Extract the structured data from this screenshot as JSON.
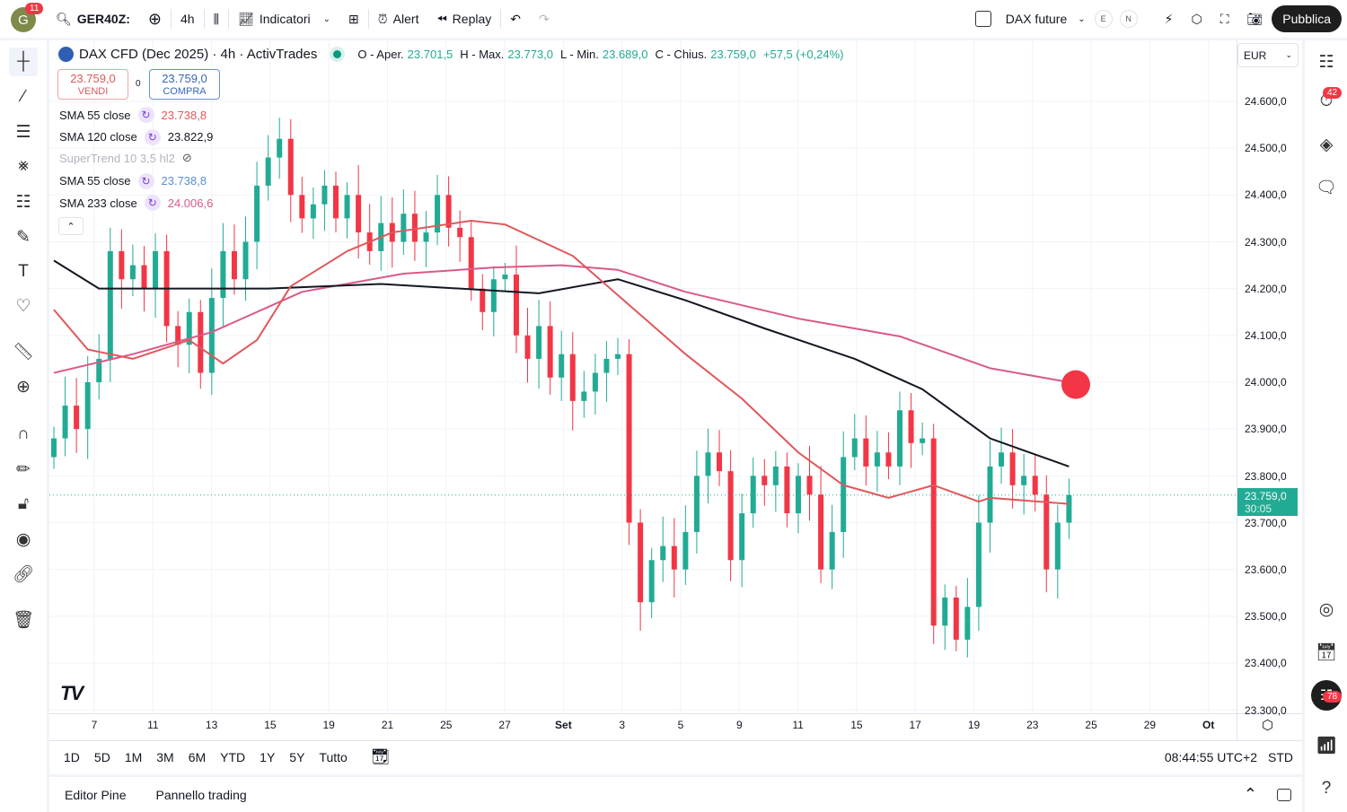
{
  "header": {
    "notif_count": "11",
    "avatar_letter": "G",
    "symbol": "GER40Z:",
    "interval": "4h",
    "indicators": "Indicatori",
    "alert": "Alert",
    "replay": "Replay",
    "layout_name": "DAX future",
    "e": "E",
    "n": "N",
    "publish": "Pubblica"
  },
  "legend": {
    "title": "DAX CFD (Dec 2025) · 4h · ActivTrades",
    "o_label": "O - Aper.",
    "o": "23.701,5",
    "h_label": "H - Max.",
    "h": "23.773,0",
    "l_label": "L - Min.",
    "l": "23.689,0",
    "c_label": "C - Chius.",
    "c": "23.759,0",
    "change": "+57,5 (+0,24%)"
  },
  "trade": {
    "sell_price": "23.759,0",
    "sell": "VENDI",
    "spread": "0",
    "buy_price": "23.759,0",
    "buy": "COMPRA"
  },
  "indicators": [
    {
      "name": "SMA 55 close",
      "value": "23.738,8",
      "color": "#e0585b"
    },
    {
      "name": "SMA 120 close",
      "value": "23.822,9",
      "color": "#131722"
    },
    {
      "name": "SuperTrend 10 3,5 hl2",
      "value": "",
      "color": "#b2b5be",
      "hidden": true
    },
    {
      "name": "SMA 55 close",
      "value": "23.738,8",
      "color": "#5b8fd0"
    },
    {
      "name": "SMA 233 close",
      "value": "24.006,6",
      "color": "#d9598a"
    }
  ],
  "currency": "EUR",
  "right_badges": {
    "alerts": "42",
    "feed": "78"
  },
  "price_axis": [
    "24.600,0",
    "24.500,0",
    "24.400,0",
    "24.300,0",
    "24.200,0",
    "24.100,0",
    "24.000,0",
    "23.900,0",
    "23.800,0",
    "23.700,0",
    "23.600,0",
    "23.500,0",
    "23.400,0",
    "23.300,0"
  ],
  "current_price": {
    "value": "23.759,0",
    "countdown": "30:05"
  },
  "date_axis": [
    "7",
    "11",
    "13",
    "15",
    "19",
    "21",
    "25",
    "27",
    "Set",
    "3",
    "5",
    "9",
    "11",
    "15",
    "17",
    "19",
    "23",
    "25",
    "29",
    "Ot"
  ],
  "periods": [
    "1D",
    "5D",
    "1M",
    "3M",
    "6M",
    "YTD",
    "1Y",
    "5Y",
    "Tutto"
  ],
  "clock": "08:44:55 UTC+2",
  "session": "STD",
  "panels": [
    "Editor Pine",
    "Pannello trading"
  ],
  "chart_data": {
    "type": "candlestick",
    "ylim": [
      23300,
      24650
    ],
    "up_color": "#22ab94",
    "down_color": "#f23645",
    "close": [
      23880,
      23950,
      23900,
      24000,
      24050,
      24280,
      24220,
      24250,
      24200,
      24280,
      24120,
      24080,
      24150,
      24020,
      24180,
      24280,
      24220,
      24300,
      24420,
      24480,
      24520,
      24400,
      24350,
      24380,
      24420,
      24350,
      24400,
      24320,
      24280,
      24340,
      24300,
      24360,
      24300,
      24320,
      24400,
      24330,
      24310,
      24200,
      24150,
      24220,
      24230,
      24100,
      24050,
      24120,
      24010,
      24060,
      23960,
      23980,
      24020,
      24050,
      24060,
      23700,
      23530,
      23620,
      23650,
      23600,
      23680,
      23800,
      23850,
      23810,
      23620,
      23720,
      23800,
      23780,
      23820,
      23720,
      23800,
      23760,
      23600,
      23680,
      23840,
      23880,
      23820,
      23850,
      23820,
      23940,
      23870,
      23880,
      23480,
      23540,
      23450,
      23520,
      23700,
      23820,
      23850,
      23780,
      23800,
      23760,
      23600,
      23700,
      23759
    ],
    "sma120": [
      [
        0,
        24260
      ],
      [
        4,
        24200
      ],
      [
        19,
        24200
      ],
      [
        29,
        24210
      ],
      [
        43,
        24190
      ],
      [
        50,
        24220
      ],
      [
        56,
        24175
      ],
      [
        63,
        24115
      ],
      [
        71,
        24050
      ],
      [
        77,
        23985
      ],
      [
        83,
        23880
      ],
      [
        90,
        23820
      ]
    ],
    "sma55": [
      [
        0,
        24155
      ],
      [
        3,
        24070
      ],
      [
        7,
        24050
      ],
      [
        12,
        24090
      ],
      [
        15,
        24040
      ],
      [
        18,
        24090
      ],
      [
        21,
        24205
      ],
      [
        26,
        24280
      ],
      [
        30,
        24320
      ],
      [
        37,
        24345
      ],
      [
        40,
        24337
      ],
      [
        46,
        24270
      ],
      [
        51,
        24165
      ],
      [
        56,
        24060
      ],
      [
        61,
        23965
      ],
      [
        66,
        23850
      ],
      [
        70,
        23780
      ],
      [
        74,
        23753
      ],
      [
        78,
        23780
      ],
      [
        82,
        23745
      ],
      [
        83,
        23753
      ],
      [
        90,
        23740
      ]
    ],
    "sma233": [
      [
        0,
        24020
      ],
      [
        7,
        24060
      ],
      [
        14,
        24107
      ],
      [
        22,
        24193
      ],
      [
        31,
        24232
      ],
      [
        39,
        24245
      ],
      [
        45,
        24250
      ],
      [
        50,
        24240
      ],
      [
        56,
        24193
      ],
      [
        66,
        24136
      ],
      [
        75,
        24098
      ],
      [
        83,
        24030
      ],
      [
        90,
        24000
      ]
    ]
  }
}
